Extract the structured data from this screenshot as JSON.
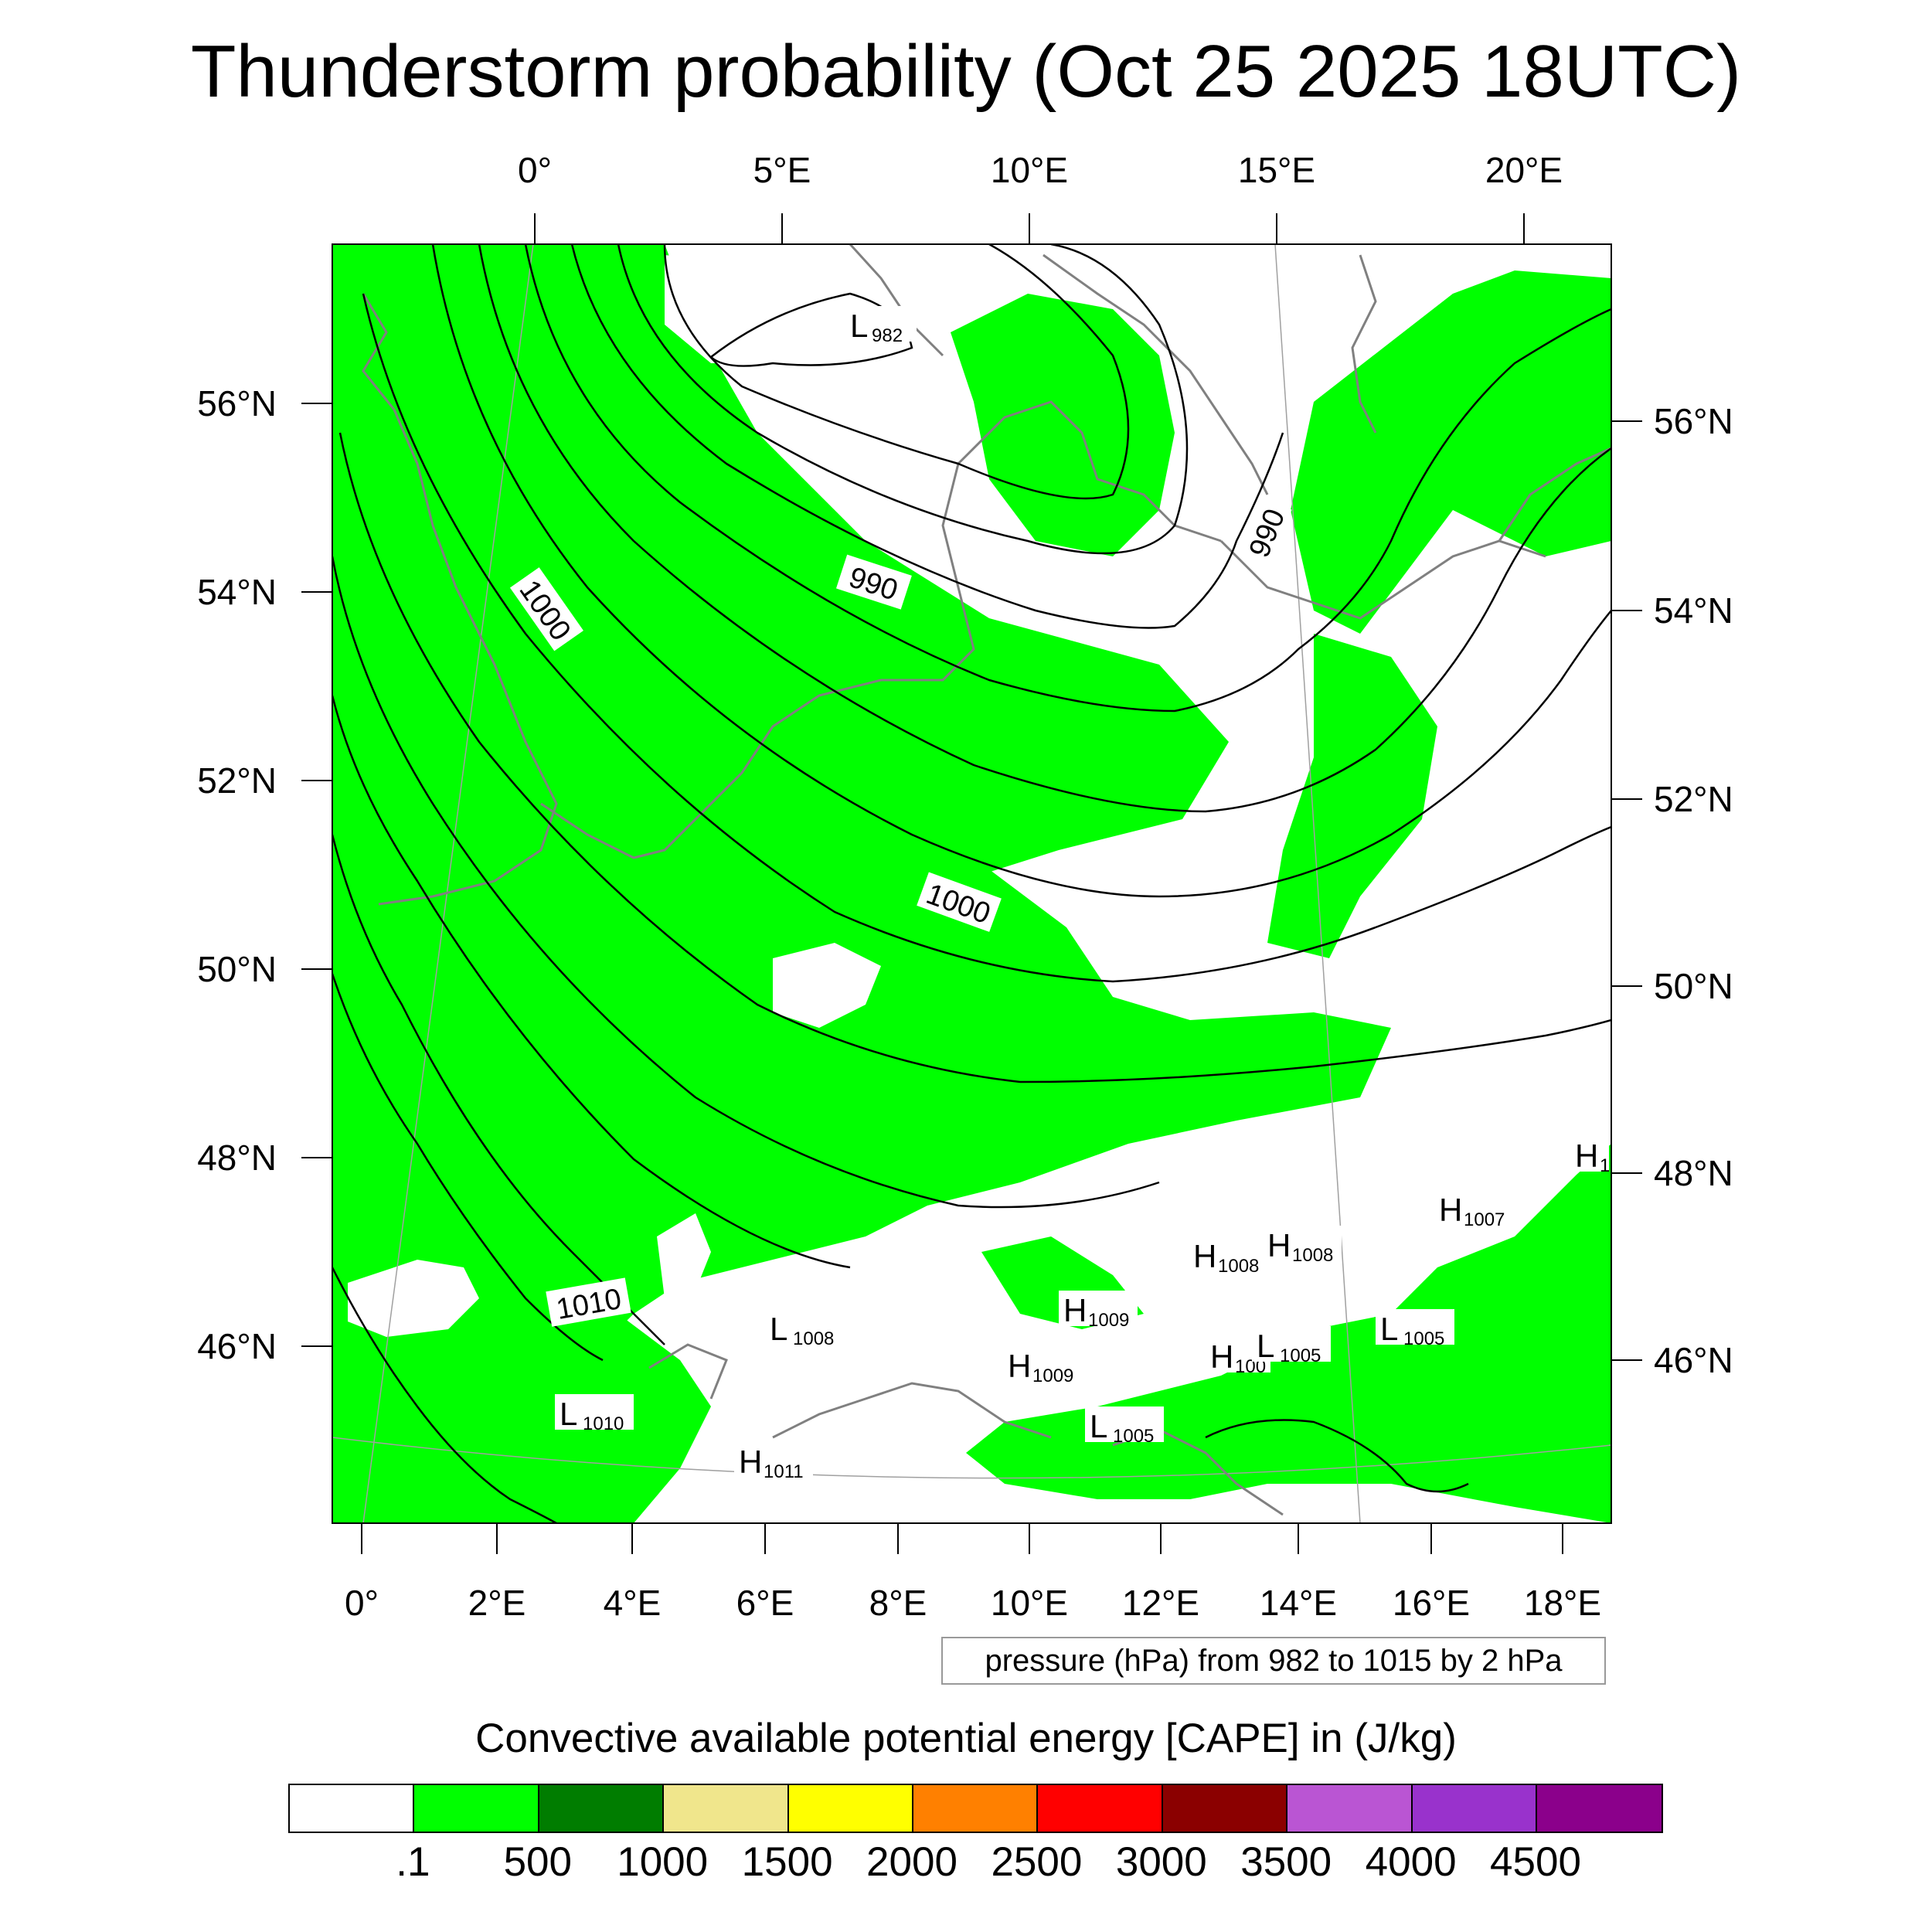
{
  "title": "Thunderstorm probability (Oct 25 2025 18UTC)",
  "top_lon_labels": [
    "0°",
    "5°E",
    "10°E",
    "15°E",
    "20°E"
  ],
  "bottom_lon_labels": [
    "0°",
    "2°E",
    "4°E",
    "6°E",
    "8°E",
    "10°E",
    "12°E",
    "14°E",
    "16°E",
    "18°E"
  ],
  "left_lat_labels": [
    "56°N",
    "54°N",
    "52°N",
    "50°N",
    "48°N",
    "46°N"
  ],
  "right_lat_labels": [
    "56°N",
    "54°N",
    "52°N",
    "50°N",
    "48°N",
    "46°N"
  ],
  "contour_labels": [
    "1000",
    "990",
    "990",
    "1000",
    "1010"
  ],
  "pressure_centers": [
    {
      "letter": "L",
      "value": "982"
    },
    {
      "letter": "H",
      "value": "1008"
    },
    {
      "letter": "H",
      "value": "1008"
    },
    {
      "letter": "H",
      "value": "1007"
    },
    {
      "letter": "H",
      "value": "1009"
    },
    {
      "letter": "L",
      "value": "1008"
    },
    {
      "letter": "H",
      "value": "1009"
    },
    {
      "letter": "H",
      "value": "100"
    },
    {
      "letter": "L",
      "value": "1005"
    },
    {
      "letter": "L",
      "value": "1005"
    },
    {
      "letter": "L",
      "value": "1010"
    },
    {
      "letter": "L",
      "value": "1005"
    },
    {
      "letter": "H",
      "value": "1011"
    },
    {
      "letter": "H",
      "value": "1"
    }
  ],
  "info_box": "pressure (hPa) from 982 to 1015 by 2 hPa",
  "colorbar": {
    "title": "Convective available potential energy [CAPE] in (J/kg)",
    "colors": [
      "#ffffff",
      "#00ff00",
      "#007d00",
      "#f0e68c",
      "#ffff00",
      "#ff8000",
      "#ff0000",
      "#8b0000",
      "#ba55d3",
      "#9932cc",
      "#8b008b"
    ],
    "labels": [
      ".1",
      "500",
      "1000",
      "1500",
      "2000",
      "2500",
      "3000",
      "3500",
      "4000",
      "4500"
    ]
  },
  "colors": {
    "cape_fill": "#00ff00",
    "isobar": "#000000",
    "coastline": "#808080",
    "graticule": "#a0a0a0"
  }
}
